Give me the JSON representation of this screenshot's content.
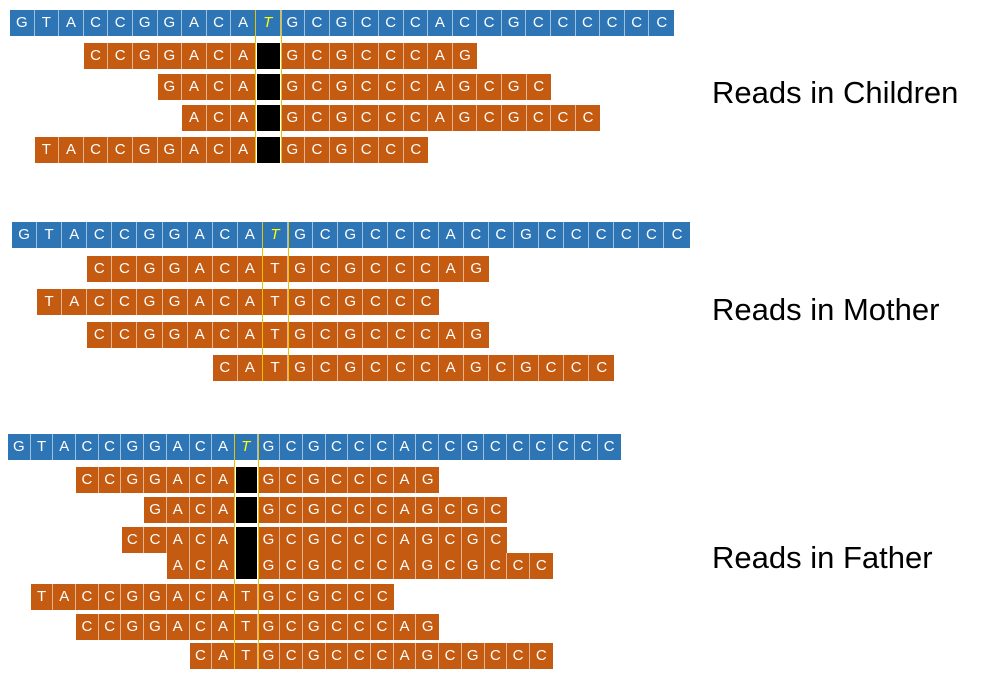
{
  "colors": {
    "reference": "#2e75b6",
    "read": "#c55a11",
    "deletion": "#000000",
    "variant_text": "#ffff00",
    "marker_line": "#e6c300"
  },
  "panels": [
    {
      "label": "Reads in Children",
      "reference": "GTACCGGACATGCGCCCACCGCCCCCC",
      "variant_index": 10,
      "reads": [
        {
          "offset": 3,
          "seq": "CCGGACA-GCGCCCAG"
        },
        {
          "offset": 6,
          "seq": "GACA-GCGCCCAGCGC"
        },
        {
          "offset": 7,
          "seq": "ACA-GCGCCCAGCGCCC"
        },
        {
          "offset": 1,
          "seq": "TACCGGACA-GCGCCC"
        }
      ]
    },
    {
      "label": "Reads in Mother",
      "reference": "GTACCGGACATGCGCCCACCGCCCCCC",
      "variant_index": 10,
      "reads": [
        {
          "offset": 3,
          "seq": "CCGGACATGCGCCCAG"
        },
        {
          "offset": 1,
          "seq": "TACCGGACATGCGCCC"
        },
        {
          "offset": 3,
          "seq": "CCGGACATGCGCCCAG"
        },
        {
          "offset": 8,
          "seq": "CATGCGCCCAGCGCCC"
        }
      ]
    },
    {
      "label": "Reads in Father",
      "reference": "GTACCGGACATGCGCCCACCGCCCCCC",
      "variant_index": 10,
      "reads": [
        {
          "offset": 3,
          "seq": "CCGGACA-GCGCCCAG"
        },
        {
          "offset": 6,
          "seq": "GACA-GCGCCCAGCGC"
        },
        {
          "offset": 5,
          "seq": "CCACA-GCGCCCAGCGC"
        },
        {
          "offset": 7,
          "seq": "ACA-GCGCCCAGCGCCC"
        },
        {
          "offset": 1,
          "seq": "TACCGGACATGCGCCC"
        },
        {
          "offset": 3,
          "seq": "CCGGACATGCGCCCAG"
        },
        {
          "offset": 8,
          "seq": "CATGCGCCCAGCGCCC"
        }
      ]
    }
  ]
}
